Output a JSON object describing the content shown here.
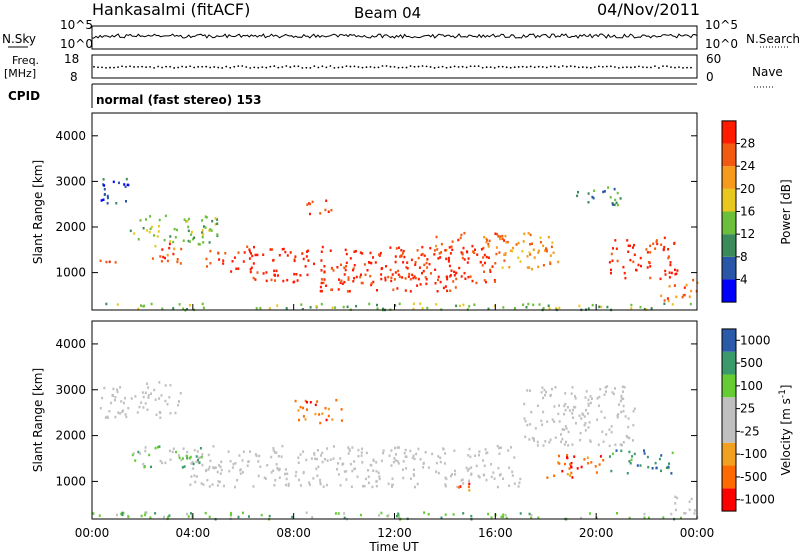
{
  "header": {
    "station": "Hankasalmi (fitACF)",
    "beam": "Beam 04",
    "date": "04/Nov/2011"
  },
  "status_panels": {
    "nsky_label": "N.Sky",
    "nsearch_label": "N.Search",
    "sky_top": "10^5",
    "sky_bottom": "10^0",
    "freq_label_1": "Freq.",
    "freq_label_2": "[MHz]",
    "freq_top": "18",
    "freq_bottom": "8",
    "nave_top": "60",
    "nave_bottom": "0",
    "nave_label": "Nave",
    "cpid_label": "CPID",
    "cpid_text": "normal (fast stereo) 153"
  },
  "x_axis": {
    "label": "Time UT",
    "ticks": [
      "00:00",
      "04:00",
      "08:00",
      "12:00",
      "16:00",
      "20:00",
      "00:00"
    ]
  },
  "colors": {
    "power": [
      "#0000ff",
      "#2a56a8",
      "#3a8a5a",
      "#6cbf3a",
      "#e8c81e",
      "#f59a1a",
      "#f25a12",
      "#ff1a00"
    ],
    "velocity": [
      "#ff0000",
      "#ff6a00",
      "#f2a020",
      "#c0c0c0",
      "#c0c0c0",
      "#66cc33",
      "#3a9a6a",
      "#2a5aa8"
    ]
  },
  "chart_data": [
    {
      "type": "heatmap",
      "title": "",
      "ylabel": "Slant Range [km]",
      "ylim": [
        180,
        4500
      ],
      "yticks": [
        1000,
        2000,
        3000,
        4000
      ],
      "xlim": [
        0,
        24
      ],
      "colorbar_label": "Power [dB]",
      "colorbar_ticks": [
        "4",
        "8",
        "12",
        "16",
        "20",
        "24",
        "28"
      ],
      "bands": [
        {
          "t0": 0.3,
          "t1": 1.4,
          "r0": 1150,
          "r1": 1300,
          "level": 6
        },
        {
          "t0": 2.3,
          "t1": 3.6,
          "r0": 1200,
          "r1": 1700,
          "level": 6
        },
        {
          "t0": 4.5,
          "t1": 6.5,
          "r0": 1050,
          "r1": 1500,
          "level": 7
        },
        {
          "t0": 6.0,
          "t1": 16.0,
          "r0": 800,
          "r1": 1600,
          "level": 7
        },
        {
          "t0": 9.0,
          "t1": 14.5,
          "r0": 600,
          "r1": 1100,
          "level": 7
        },
        {
          "t0": 13.5,
          "t1": 16.5,
          "r0": 1400,
          "r1": 1900,
          "level": 6
        },
        {
          "t0": 16.0,
          "t1": 18.5,
          "r0": 1100,
          "r1": 1900,
          "level": 5
        },
        {
          "t0": 20.5,
          "t1": 23.2,
          "r0": 900,
          "r1": 1800,
          "level": 7
        },
        {
          "t0": 22.5,
          "t1": 24.0,
          "r0": 400,
          "r1": 900,
          "level": 6
        },
        {
          "t0": 0.2,
          "t1": 1.5,
          "r0": 2500,
          "r1": 3100,
          "level": 1
        },
        {
          "t0": 1.5,
          "t1": 5.0,
          "r0": 1600,
          "r1": 2300,
          "level": 3
        },
        {
          "t0": 8.5,
          "t1": 9.5,
          "r0": 2300,
          "r1": 2700,
          "level": 6
        },
        {
          "t0": 19.0,
          "t1": 21.0,
          "r0": 2500,
          "r1": 2900,
          "level": 2
        },
        {
          "t0": 0.0,
          "t1": 24.0,
          "r0": 200,
          "r1": 350,
          "level": 3
        }
      ]
    },
    {
      "type": "heatmap",
      "title": "",
      "ylabel": "Slant Range [km]",
      "ylim": [
        180,
        4500
      ],
      "yticks": [
        1000,
        2000,
        3000,
        4000
      ],
      "xlim": [
        0,
        24
      ],
      "colorbar_label": "Velocity [m s^-1]",
      "colorbar_ticks": [
        "-1000",
        "-500",
        "-100",
        "-25",
        "25",
        "100",
        "500",
        "1000"
      ],
      "bands": [
        {
          "t0": 0.3,
          "t1": 3.5,
          "r0": 2400,
          "r1": 3200,
          "level": 3
        },
        {
          "t0": 3.5,
          "t1": 17.0,
          "r0": 900,
          "r1": 1800,
          "level": 3
        },
        {
          "t0": 17.0,
          "t1": 21.5,
          "r0": 1800,
          "r1": 3100,
          "level": 3
        },
        {
          "t0": 1.5,
          "t1": 4.5,
          "r0": 1300,
          "r1": 1800,
          "level": 5
        },
        {
          "t0": 8.0,
          "t1": 10.0,
          "r0": 2300,
          "r1": 2800,
          "level": 1
        },
        {
          "t0": 14.5,
          "t1": 15.5,
          "r0": 800,
          "r1": 1000,
          "level": 1
        },
        {
          "t0": 18.0,
          "t1": 20.5,
          "r0": 1100,
          "r1": 1600,
          "level": 1
        },
        {
          "t0": 20.5,
          "t1": 23.0,
          "r0": 1200,
          "r1": 1700,
          "level": 6
        },
        {
          "t0": 22.8,
          "t1": 24.0,
          "r0": 300,
          "r1": 700,
          "level": 3
        },
        {
          "t0": 0.0,
          "t1": 24.0,
          "r0": 200,
          "r1": 350,
          "level": 5
        }
      ]
    }
  ]
}
